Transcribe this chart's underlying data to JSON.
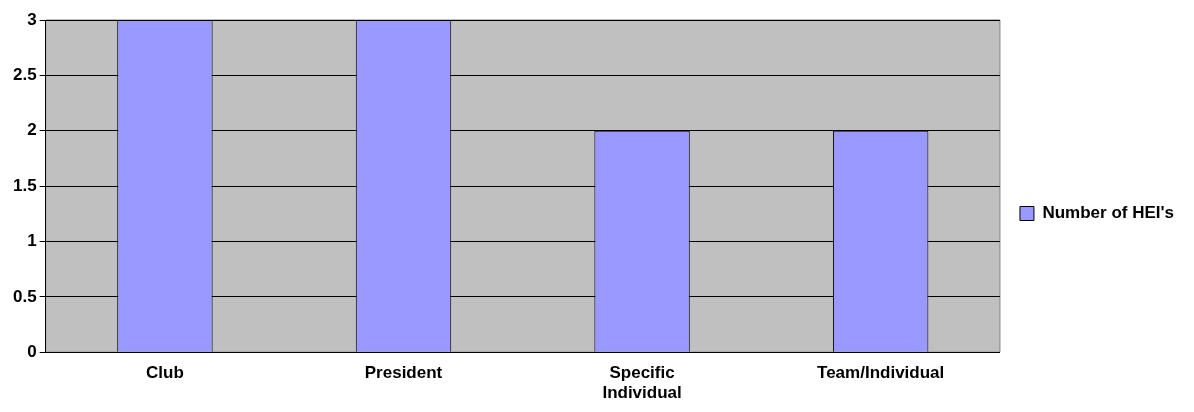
{
  "chart_data": {
    "type": "bar",
    "categories": [
      "Club",
      "President",
      "Specific Individual",
      "Team/Individual"
    ],
    "series": [
      {
        "name": "Number of HEI's",
        "color": "#9999ff",
        "values": [
          3,
          3,
          2,
          2
        ]
      }
    ],
    "ylim": [
      0,
      3
    ],
    "yticks": [
      0,
      0.5,
      1,
      1.5,
      2,
      2.5,
      3
    ],
    "grid": "y",
    "legend": "right"
  }
}
